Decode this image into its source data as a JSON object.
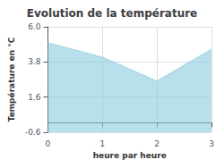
{
  "chart_data": {
    "type": "area",
    "title": "Evolution de la température",
    "x_label": "heure par heure",
    "y_label": "Température en °C",
    "x": [
      0,
      1,
      2,
      3
    ],
    "values": [
      5.0,
      4.1,
      2.6,
      4.6
    ],
    "color": "#88ccdd",
    "line_style": "dotted",
    "xlim": [
      0,
      3
    ],
    "xticks": [
      0,
      1,
      2,
      3
    ],
    "ylim": [
      -0.6,
      6.0
    ],
    "yticks": [
      -0.6,
      1.6,
      3.8,
      {
        "value": 6.0,
        "label": "6.0"
      }
    ],
    "grid": true
  }
}
